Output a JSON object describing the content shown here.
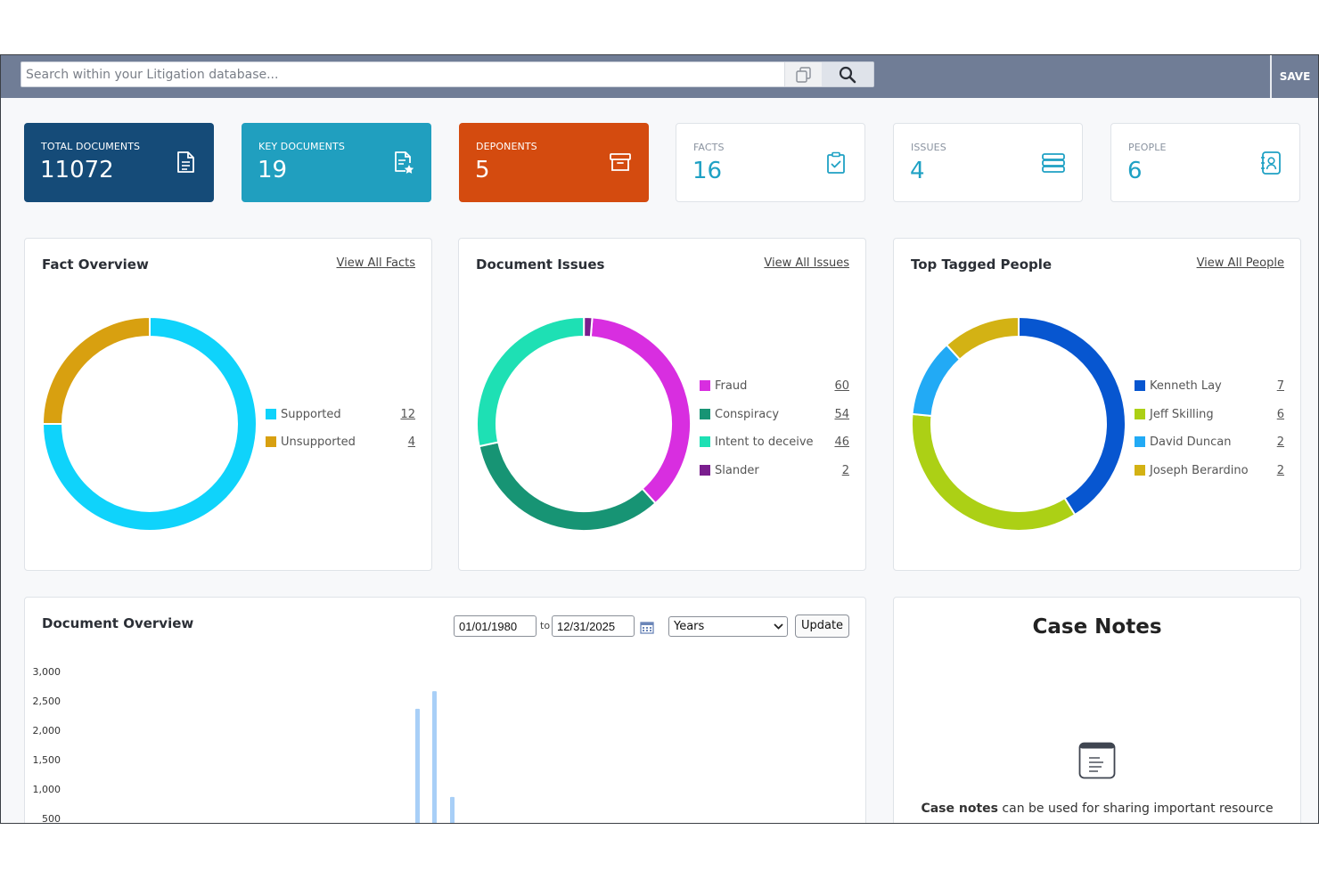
{
  "search": {
    "placeholder": "Search within your Litigation database...",
    "copy_icon": "copy-icon",
    "search_icon": "search-icon"
  },
  "toolbar": {
    "save_label": "SAVE"
  },
  "stats": [
    {
      "label": "TOTAL DOCUMENTS",
      "value": "11072",
      "icon": "document-icon",
      "color": "#154b78"
    },
    {
      "label": "KEY DOCUMENTS",
      "value": "19",
      "icon": "document-star-icon",
      "color": "#209fbf"
    },
    {
      "label": "DEPONENTS",
      "value": "5",
      "icon": "archive-box-icon",
      "color": "#d44b0f"
    },
    {
      "label": "FACTS",
      "value": "16",
      "icon": "clipboard-check-icon",
      "color": "#1fa1c4"
    },
    {
      "label": "ISSUES",
      "value": "4",
      "icon": "stack-icon",
      "color": "#1fa1c4"
    },
    {
      "label": "PEOPLE",
      "value": "6",
      "icon": "contact-book-icon",
      "color": "#1fa1c4"
    }
  ],
  "fact_overview": {
    "title": "Fact Overview",
    "link": "View All Facts",
    "items": [
      {
        "name": "Supported",
        "count": "12",
        "color": "#0fd3fb"
      },
      {
        "name": "Unsupported",
        "count": "4",
        "color": "#d8a010"
      }
    ]
  },
  "document_issues": {
    "title": "Document Issues",
    "link": "View All Issues",
    "items": [
      {
        "name": "Fraud",
        "count": "60",
        "color": "#d82ee0"
      },
      {
        "name": "Conspiracy",
        "count": "54",
        "color": "#179474"
      },
      {
        "name": "Intent to deceive",
        "count": "46",
        "color": "#1ee0b4"
      },
      {
        "name": "Slander",
        "count": "2",
        "color": "#7a1e8e"
      }
    ]
  },
  "top_tagged_people": {
    "title": "Top Tagged People",
    "link": "View All People",
    "items": [
      {
        "name": "Kenneth Lay",
        "count": "7",
        "color": "#0756d0"
      },
      {
        "name": "Jeff Skilling",
        "count": "6",
        "color": "#acd015"
      },
      {
        "name": "David Duncan",
        "count": "2",
        "color": "#22aaf5"
      },
      {
        "name": "Joseph Berardino",
        "count": "2",
        "color": "#d3b214"
      }
    ]
  },
  "document_overview": {
    "title": "Document Overview",
    "date_from": "01/01/1980",
    "to_label": "to",
    "date_to": "12/31/2025",
    "calendar_icon": "calendar-icon",
    "granularity": "Years",
    "update_label": "Update"
  },
  "chart_data": {
    "type": "bar",
    "title": "",
    "xlabel": "",
    "ylabel": "",
    "ylim": [
      0,
      3000
    ],
    "yticks": [
      "3,000",
      "2,500",
      "2,000",
      "1,500",
      "1,000",
      "500"
    ],
    "ytick_values": [
      3000,
      2500,
      2000,
      1500,
      1000,
      500
    ],
    "values": [
      2350,
      2650,
      850
    ],
    "color": "#a8cff7"
  },
  "case_notes": {
    "title": "Case Notes",
    "icon": "note-icon",
    "text_bold": "Case notes",
    "text_rest": " can be used for sharing important resource"
  }
}
